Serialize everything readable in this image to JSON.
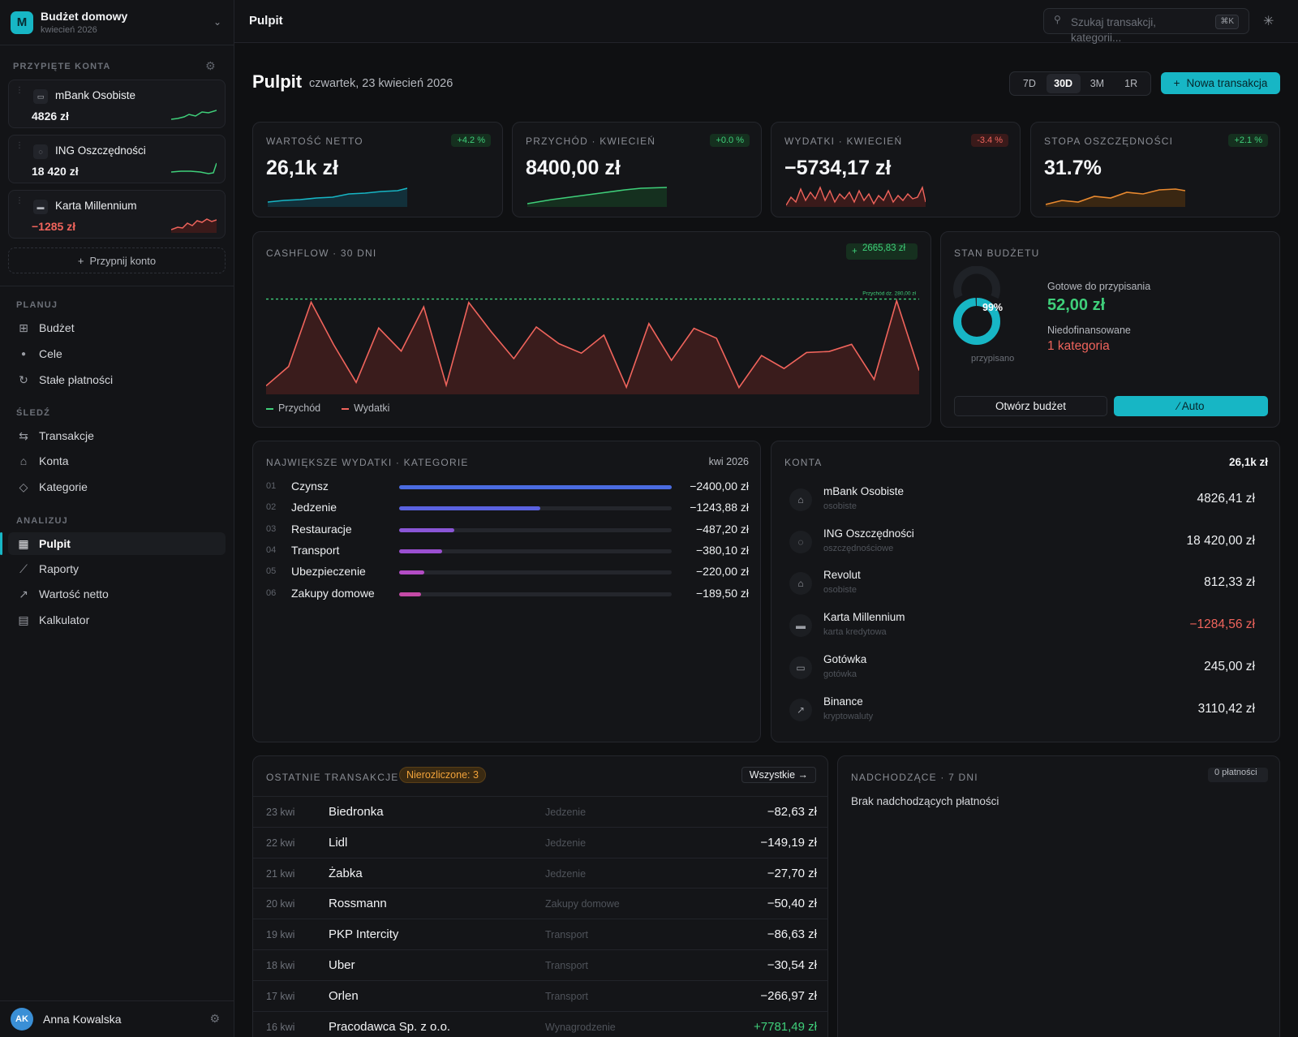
{
  "workspace": {
    "logo_letter": "M",
    "title": "Budżet domowy",
    "subtitle": "kwiecień 2026"
  },
  "pinned": {
    "label": "PRZYPIĘTE KONTA",
    "accounts": [
      {
        "name": "mBank Osobiste",
        "balance": "4826 zł",
        "icon": "wallet-icon",
        "trend": "up"
      },
      {
        "name": "ING Oszczędności",
        "balance": "18 420 zł",
        "icon": "piggy-bank-icon",
        "trend": "up"
      },
      {
        "name": "Karta Millennium",
        "balance": "−1285 zł",
        "icon": "credit-card-icon",
        "trend": "volatile"
      }
    ],
    "pin_button": "Przypnij konto"
  },
  "nav": {
    "plan_label": "PLANUJ",
    "plan": [
      {
        "label": "Budżet",
        "icon": "grid-icon"
      },
      {
        "label": "Cele",
        "icon": "target-icon"
      },
      {
        "label": "Stałe płatności",
        "icon": "refresh-icon"
      }
    ],
    "track_label": "ŚLEDŹ",
    "track": [
      {
        "label": "Transakcje",
        "icon": "arrows-swap-icon"
      },
      {
        "label": "Konta",
        "icon": "bank-icon"
      },
      {
        "label": "Kategorie",
        "icon": "tag-icon"
      }
    ],
    "analyze_label": "ANALIZUJ",
    "analyze": [
      {
        "label": "Pulpit",
        "icon": "dashboard-icon",
        "active": true
      },
      {
        "label": "Raporty",
        "icon": "line-chart-icon"
      },
      {
        "label": "Wartość netto",
        "icon": "trend-up-icon"
      },
      {
        "label": "Kalkulator",
        "icon": "calculator-icon"
      }
    ]
  },
  "user": {
    "initials": "AK",
    "name": "Anna Kowalska"
  },
  "topbar": {
    "title": "Pulpit",
    "search_placeholder": "Szukaj transakcji, kategorii...",
    "search_shortcut": "⌘K"
  },
  "page": {
    "title": "Pulpit",
    "date": "czwartek, 23 kwiecień 2026",
    "ranges": [
      "7D",
      "30D",
      "3M",
      "1R"
    ],
    "active_range": "30D",
    "new_tx_label": "Nowa transakcja"
  },
  "kpis": [
    {
      "label": "WARTOŚĆ NETTO",
      "value": "26,1k zł",
      "delta": "+4.2 %",
      "delta_positive": true,
      "color": "#17b6c5"
    },
    {
      "label": "PRZYCHÓD · KWIECIEŃ",
      "value": "8400,00 zł",
      "delta": "+0.0 %",
      "delta_positive": true,
      "color": "#3fcf7a"
    },
    {
      "label": "WYDATKI · KWIECIEŃ",
      "value": "−5734,17 zł",
      "delta": "-3.4 %",
      "delta_positive": false,
      "color": "#f0645c"
    },
    {
      "label": "STOPA OSZCZĘDNOŚCI",
      "value": "31.7%",
      "delta": "+2.1 %",
      "delta_positive": true,
      "color": "#e8892f"
    }
  ],
  "cashflow": {
    "title": "CASHFLOW · 30 DNI",
    "badge": "2665,83 zł",
    "income_line_label": "Przychód dz. 280,00 zł",
    "legend_income": "Przychód",
    "legend_expense": "Wydatki",
    "income_color": "#3fcf7a",
    "expense_color": "#f0645c"
  },
  "chart_data": {
    "type": "area",
    "title": "CASHFLOW · 30 DNI",
    "xlabel": "",
    "ylabel": "",
    "x": [
      1,
      2,
      3,
      4,
      5,
      6,
      7,
      8,
      9,
      10,
      11,
      12,
      13,
      14,
      15,
      16,
      17,
      18,
      19,
      20,
      21,
      22,
      23,
      24,
      25,
      26,
      27,
      28,
      29,
      30
    ],
    "series": [
      {
        "name": "Przychód",
        "values": [
          280,
          280,
          280,
          280,
          280,
          280,
          280,
          280,
          280,
          280,
          280,
          280,
          280,
          280,
          280,
          280,
          280,
          280,
          280,
          280,
          280,
          280,
          280,
          280,
          280,
          280,
          280,
          280,
          280,
          280
        ]
      },
      {
        "name": "Wydatki",
        "values": [
          25,
          82,
          271,
          146,
          35,
          195,
          127,
          257,
          27,
          270,
          184,
          105,
          198,
          149,
          121,
          174,
          21,
          208,
          100,
          194,
          165,
          20,
          114,
          76,
          123,
          126,
          147,
          44,
          275,
          70
        ]
      }
    ],
    "ylim": [
      0,
      310
    ],
    "grid": false,
    "legend": "bottom-left"
  },
  "budget": {
    "title": "STAN BUDŻETU",
    "percent": "99%",
    "percent_value": 0.99,
    "assigned_label": "przypisano",
    "ready_label": "Gotowe do przypisania",
    "ready_value": "52,00 zł",
    "under_label": "Niedofinansowane",
    "under_value": "1 kategoria",
    "open_button": "Otwórz budżet",
    "auto_button": "Auto"
  },
  "categories": {
    "title": "NAJWIĘKSZE WYDATKI · KATEGORIE",
    "period": "kwi 2026",
    "items": [
      {
        "idx": "01",
        "name": "Czynsz",
        "amount": "−2400,00 zł",
        "value": 2400.0,
        "color": "#4a6be0"
      },
      {
        "idx": "02",
        "name": "Jedzenie",
        "amount": "−1243,88 zł",
        "value": 1243.88,
        "color": "#5a62e0"
      },
      {
        "idx": "03",
        "name": "Restauracje",
        "amount": "−487,20 zł",
        "value": 487.2,
        "color": "#8a56d6"
      },
      {
        "idx": "04",
        "name": "Transport",
        "amount": "−380,10 zł",
        "value": 380.1,
        "color": "#9a4fd0"
      },
      {
        "idx": "05",
        "name": "Ubezpieczenie",
        "amount": "−220,00 zł",
        "value": 220.0,
        "color": "#b34cc4"
      },
      {
        "idx": "06",
        "name": "Zakupy domowe",
        "amount": "−189,50 zł",
        "value": 189.5,
        "color": "#c44aa6"
      }
    ]
  },
  "accounts": {
    "title": "KONTA",
    "total": "26,1k zł",
    "items": [
      {
        "name": "mBank Osobiste",
        "type": "osobiste",
        "balance": "4826,41 zł",
        "negative": false,
        "icon": "bank-icon"
      },
      {
        "name": "ING Oszczędności",
        "type": "oszczędnościowe",
        "balance": "18 420,00 zł",
        "negative": false,
        "icon": "piggy-bank-icon"
      },
      {
        "name": "Revolut",
        "type": "osobiste",
        "balance": "812,33 zł",
        "negative": false,
        "icon": "bank-icon"
      },
      {
        "name": "Karta Millennium",
        "type": "karta kredytowa",
        "balance": "−1284,56 zł",
        "negative": true,
        "icon": "credit-card-icon"
      },
      {
        "name": "Gotówka",
        "type": "gotówka",
        "balance": "245,00 zł",
        "negative": false,
        "icon": "wallet-icon"
      },
      {
        "name": "Binance",
        "type": "kryptowaluty",
        "balance": "3110,42 zł",
        "negative": false,
        "icon": "trend-up-icon"
      }
    ]
  },
  "transactions": {
    "title": "OSTATNIE TRANSAKCJE",
    "unreconciled": "Nierozliczone: 3",
    "all_button": "Wszystkie →",
    "rows": [
      {
        "date": "23 kwi",
        "payee": "Biedronka",
        "category": "Jedzenie",
        "amount": "−82,63 zł",
        "income": false
      },
      {
        "date": "22 kwi",
        "payee": "Lidl",
        "category": "Jedzenie",
        "amount": "−149,19 zł",
        "income": false
      },
      {
        "date": "21 kwi",
        "payee": "Żabka",
        "category": "Jedzenie",
        "amount": "−27,70 zł",
        "income": false
      },
      {
        "date": "20 kwi",
        "payee": "Rossmann",
        "category": "Zakupy domowe",
        "amount": "−50,40 zł",
        "income": false
      },
      {
        "date": "19 kwi",
        "payee": "PKP Intercity",
        "category": "Transport",
        "amount": "−86,63 zł",
        "income": false
      },
      {
        "date": "18 kwi",
        "payee": "Uber",
        "category": "Transport",
        "amount": "−30,54 zł",
        "income": false
      },
      {
        "date": "17 kwi",
        "payee": "Orlen",
        "category": "Transport",
        "amount": "−266,97 zł",
        "income": false
      },
      {
        "date": "16 kwi",
        "payee": "Pracodawca Sp. z o.o.",
        "category": "Wynagrodzenie",
        "amount": "+7781,49 zł",
        "income": true
      }
    ]
  },
  "upcoming": {
    "title": "NADCHODZĄCE · 7 DNI",
    "badge": "0 płatności",
    "empty": "Brak nadchodzących płatności"
  }
}
